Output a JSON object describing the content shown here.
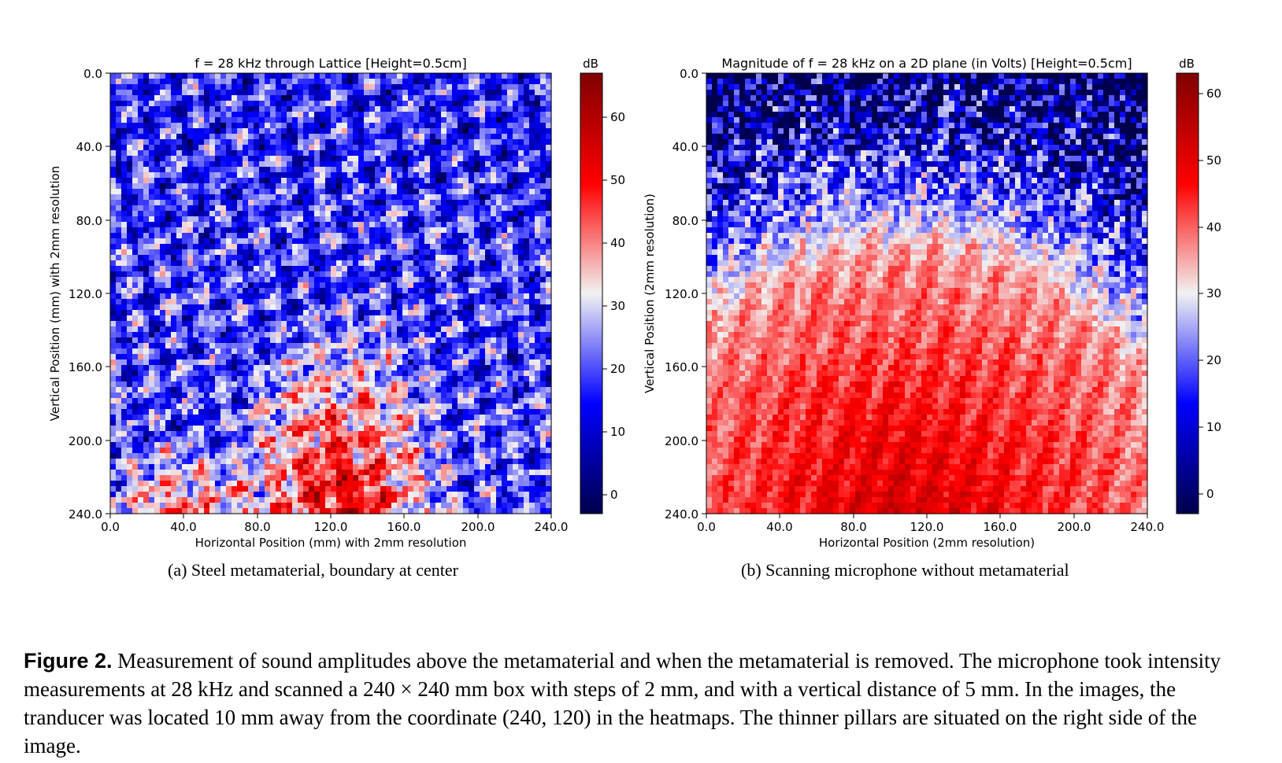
{
  "figure": {
    "label": "Figure 2.",
    "caption": "Measurement of sound amplitudes above the metamaterial and when the metamaterial is removed. The microphone took intensity measurements at 28 kHz and scanned a 240 × 240 mm box with steps of 2 mm, and with a vertical distance of 5 mm. In the images, the tranducer was located 10 mm away from the coordinate (240, 120) in the heatmaps. The thinner pillars are situated on the right side of the image."
  },
  "colors": {
    "low": "#00004c",
    "mid": "#f2f2f2",
    "high": "#800000"
  },
  "chart_data": [
    {
      "type": "heatmap",
      "panel": "a",
      "title": "f = 28 kHz through Lattice [Height=0.5cm]",
      "subcaption": "(a)  Steel metamaterial, boundary at center",
      "xlabel": "Horizontal Position (mm) with 2mm resolution",
      "ylabel": "Vertical Position (mm) with 2mm resolution",
      "xticks": [
        "0.0",
        "40.0",
        "80.0",
        "120.0",
        "160.0",
        "200.0",
        "240.0"
      ],
      "yticks": [
        "0.0",
        "40.0",
        "80.0",
        "120.0",
        "160.0",
        "200.0",
        "240.0"
      ],
      "xlim": [
        0,
        240
      ],
      "ylim": [
        0,
        240
      ],
      "y_inverted": true,
      "grid": "120 x 120",
      "colorbar": {
        "label": "dB",
        "range": [
          -3,
          67
        ],
        "ticks": [
          "0",
          "10",
          "20",
          "30",
          "40",
          "50",
          "60"
        ]
      },
      "colormap": "seismic"
    },
    {
      "type": "heatmap",
      "panel": "b",
      "title": "Magnitude of f = 28 kHz on a 2D plane (in Volts) [Height=0.5cm]",
      "subcaption": "(b)  Scanning microphone without metamaterial",
      "xlabel": "Horizontal Position (2mm resolution)",
      "ylabel": "Vertical Position (2mm resolution)",
      "xticks": [
        "0.0",
        "40.0",
        "80.0",
        "120.0",
        "160.0",
        "200.0",
        "240.0"
      ],
      "yticks": [
        "0.0",
        "40.0",
        "80.0",
        "120.0",
        "160.0",
        "200.0",
        "240.0"
      ],
      "xlim": [
        0,
        240
      ],
      "ylim": [
        0,
        240
      ],
      "y_inverted": true,
      "grid": "120 x 120",
      "colorbar": {
        "label": "dB",
        "range": [
          -3,
          63
        ],
        "ticks": [
          "0",
          "10",
          "20",
          "30",
          "40",
          "50",
          "60"
        ]
      },
      "colormap": "seismic"
    }
  ]
}
